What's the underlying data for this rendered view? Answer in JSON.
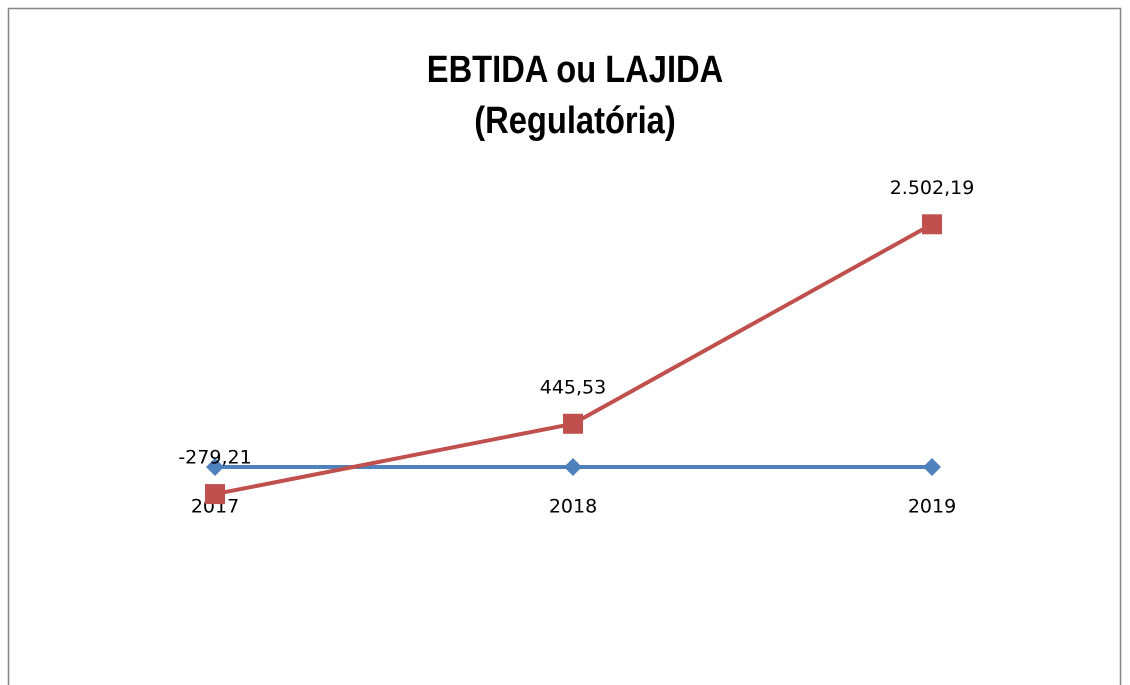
{
  "chart_data": {
    "type": "line",
    "title": [
      "EBTIDA ou LAJIDA",
      "(Regulatória)"
    ],
    "categories": [
      "2017",
      "2018",
      "2019"
    ],
    "series": [
      {
        "color": "#4f81bd",
        "marker": "diamond",
        "values": [
          0,
          0,
          0
        ]
      },
      {
        "color": "#c0504d",
        "marker": "square",
        "values": [
          -279.21,
          445.53,
          2502.19
        ],
        "value_labels": [
          "-279,21",
          "445,53",
          "2.502,19"
        ]
      }
    ],
    "ylim": [
      -1000,
      3000
    ]
  }
}
